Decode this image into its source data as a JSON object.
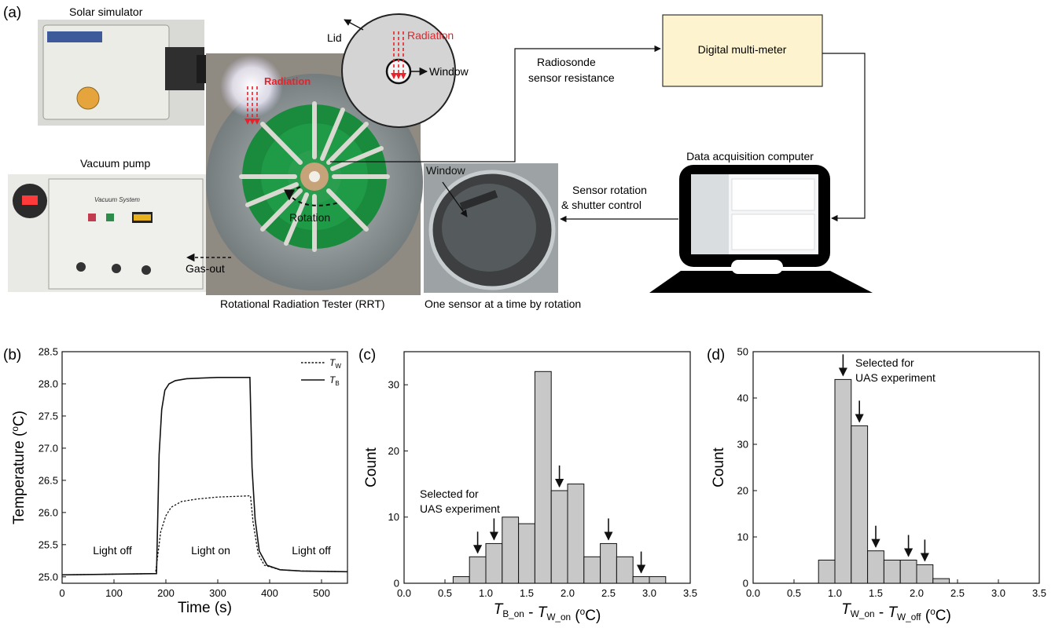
{
  "panel_a": {
    "label": "(a)",
    "solar_simulator": "Solar simulator",
    "vacuum_pump": "Vacuum pump",
    "vacuum_system_text": "Vacuum System",
    "gas_out": "Gas-out",
    "radiation": "Radiation",
    "rotation": "Rotation",
    "rrt_caption": "Rotational Radiation Tester (RRT)",
    "lid": "Lid",
    "lid_radiation": "Radiation",
    "lid_window": "Window",
    "radiosonde_line1": "Radiosonde",
    "radiosonde_line2": "sensor resistance",
    "dmm": "Digital multi-meter",
    "window_photo_label": "Window",
    "one_sensor_caption": "One sensor at a time by rotation",
    "sensor_rot_line1": "Sensor rotation",
    "sensor_rot_line2": "& shutter control",
    "daq": "Data acquisition computer",
    "colors": {
      "radiation": "#e8222a",
      "dmm_fill": "#fdf3cf",
      "green_plate": "#1a8a3d"
    }
  },
  "panel_b": {
    "label": "(b)",
    "annotations": {
      "off1": "Light off",
      "on": "Light on",
      "off2": "Light off"
    }
  },
  "panel_c": {
    "label": "(c)",
    "annotation_line1": "Selected for",
    "annotation_line2": "UAS experiment"
  },
  "panel_d": {
    "label": "(d)",
    "annotation_line1": "Selected for",
    "annotation_line2": "UAS experiment"
  },
  "chart_data": [
    {
      "type": "line",
      "xlabel": "Time (s)",
      "ylabel": "Temperature (oC)",
      "xlim": [
        0,
        550
      ],
      "ylim": [
        24.9,
        28.5
      ],
      "xticks": [
        "0",
        "100",
        "200",
        "300",
        "400",
        "500"
      ],
      "yticks": [
        "25.0",
        "25.5",
        "26.0",
        "26.5",
        "27.0",
        "27.5",
        "28.0",
        "28.5"
      ],
      "legend_position": "top-right",
      "series": [
        {
          "name": "TW",
          "style": "dotted",
          "x": [
            0,
            180,
            190,
            200,
            210,
            230,
            260,
            300,
            363,
            368,
            378,
            390,
            420,
            460,
            550
          ],
          "y": [
            25.03,
            25.05,
            25.7,
            25.95,
            26.08,
            26.17,
            26.21,
            26.24,
            26.26,
            25.85,
            25.35,
            25.18,
            25.11,
            25.09,
            25.08
          ]
        },
        {
          "name": "TB",
          "style": "solid",
          "x": [
            0,
            182,
            187,
            192,
            198,
            206,
            218,
            240,
            300,
            362,
            366,
            372,
            380,
            395,
            420,
            460,
            550
          ],
          "y": [
            25.03,
            25.05,
            26.9,
            27.6,
            27.9,
            28.0,
            28.05,
            28.08,
            28.1,
            28.1,
            26.7,
            25.9,
            25.4,
            25.18,
            25.11,
            25.09,
            25.08
          ]
        }
      ]
    },
    {
      "type": "bar",
      "xlabel": "TB_on - TW_on (oC)",
      "ylabel": "Count",
      "xlim": [
        0,
        3.5
      ],
      "ylim": [
        0,
        35
      ],
      "xticks": [
        "0.0",
        "0.5",
        "1.0",
        "1.5",
        "2.0",
        "2.5",
        "3.0",
        "3.5"
      ],
      "yticks": [
        "0",
        "10",
        "20",
        "30"
      ],
      "bin_width": 0.2,
      "bin_centers": [
        0.7,
        0.9,
        1.1,
        1.3,
        1.5,
        1.7,
        1.9,
        2.1,
        2.3,
        2.5,
        2.7,
        2.9,
        3.1
      ],
      "values": [
        1,
        4,
        6,
        10,
        9,
        32,
        14,
        15,
        4,
        6,
        4,
        1,
        1
      ],
      "selected_bins": [
        0.9,
        1.1,
        1.9,
        2.5,
        2.9
      ]
    },
    {
      "type": "bar",
      "xlabel": "TW_on - TW_off (oC)",
      "ylabel": "Count",
      "xlim": [
        0,
        3.5
      ],
      "ylim": [
        0,
        50
      ],
      "xticks": [
        "0.0",
        "0.5",
        "1.0",
        "1.5",
        "2.0",
        "2.5",
        "3.0",
        "3.5"
      ],
      "yticks": [
        "0",
        "10",
        "20",
        "30",
        "40",
        "50"
      ],
      "bin_width": 0.2,
      "bin_centers": [
        0.9,
        1.1,
        1.3,
        1.5,
        1.7,
        1.9,
        2.1,
        2.3
      ],
      "values": [
        5,
        44,
        34,
        7,
        5,
        5,
        4,
        1
      ],
      "selected_bins": [
        1.1,
        1.3,
        1.5,
        1.9,
        2.1
      ]
    }
  ]
}
